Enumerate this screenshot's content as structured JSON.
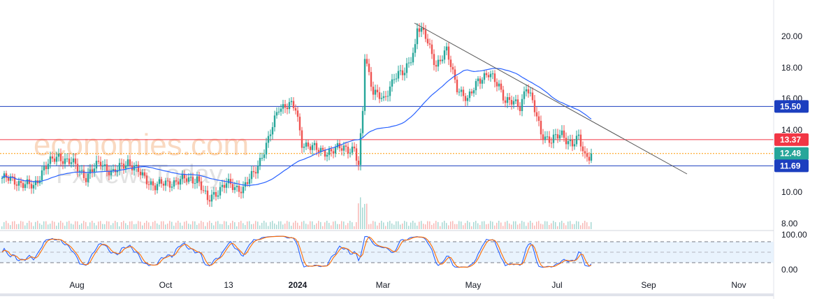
{
  "chart_data": {
    "type": "candlestick",
    "title": "",
    "watermarks": [
      "economies.com",
      "FxNewsToday"
    ],
    "y_ticks": [
      "20.00",
      "18.00",
      "16.00",
      "14.00",
      "10.00",
      "8.00"
    ],
    "ylim": [
      8,
      21
    ],
    "x_ticks": [
      "Aug",
      "Oct",
      "13",
      "2024",
      "Mar",
      "May",
      "Jul",
      "Sep",
      "Nov"
    ],
    "osc_ticks": [
      "100.00",
      "0.00"
    ],
    "osc_levels": [
      80,
      20
    ],
    "price_path": [
      [
        0,
        10.9
      ],
      [
        7,
        10.7
      ],
      [
        15,
        10.3
      ],
      [
        20,
        11.6
      ],
      [
        27,
        12.3
      ],
      [
        33,
        11.9
      ],
      [
        40,
        11.0
      ],
      [
        47,
        11.9
      ],
      [
        53,
        11.2
      ],
      [
        60,
        12.0
      ],
      [
        67,
        11.0
      ],
      [
        73,
        10.4
      ],
      [
        80,
        10.6
      ],
      [
        87,
        10.8
      ],
      [
        93,
        10.9
      ],
      [
        98,
        9.4
      ],
      [
        100,
        9.8
      ],
      [
        107,
        10.5
      ],
      [
        115,
        10.2
      ],
      [
        120,
        11.2
      ],
      [
        127,
        13.3
      ],
      [
        132,
        15.5
      ],
      [
        137,
        15.6
      ],
      [
        140,
        15.3
      ],
      [
        143,
        13.2
      ],
      [
        150,
        12.7
      ],
      [
        157,
        12.6
      ],
      [
        163,
        12.9
      ],
      [
        168,
        12.7
      ],
      [
        170,
        11.6
      ],
      [
        172,
        15.2
      ],
      [
        173,
        18.8
      ],
      [
        177,
        16.5
      ],
      [
        182,
        15.8
      ],
      [
        187,
        17.5
      ],
      [
        192,
        17.6
      ],
      [
        197,
        19.4
      ],
      [
        198,
        20.7
      ],
      [
        202,
        19.9
      ],
      [
        207,
        18.2
      ],
      [
        212,
        19.0
      ],
      [
        217,
        16.8
      ],
      [
        222,
        15.8
      ],
      [
        227,
        17.3
      ],
      [
        232,
        17.5
      ],
      [
        237,
        16.9
      ],
      [
        240,
        15.9
      ],
      [
        247,
        15.5
      ],
      [
        250,
        16.9
      ],
      [
        253,
        15.7
      ],
      [
        257,
        13.8
      ],
      [
        262,
        13.3
      ],
      [
        267,
        13.7
      ],
      [
        272,
        13.1
      ],
      [
        275,
        13.4
      ],
      [
        278,
        12.3
      ],
      [
        281,
        12.48
      ]
    ],
    "levels": [
      {
        "value": 15.5,
        "label": "15.50",
        "color": "#1c3fbf"
      },
      {
        "value": 13.37,
        "label": "13.37",
        "color": "#f23645"
      },
      {
        "value": 12.48,
        "label": "12.48",
        "color": "#26a69a",
        "dotted": true
      },
      {
        "value": 11.69,
        "label": "11.69",
        "color": "#1c3fbf"
      }
    ],
    "colors": {
      "up": "#26a69a",
      "down": "#ef5350",
      "ma": "#2962ff",
      "k": "#2962ff",
      "d": "#ff6d00"
    }
  }
}
